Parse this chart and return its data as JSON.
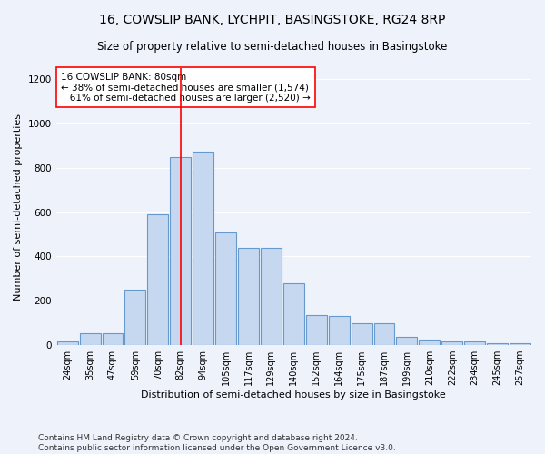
{
  "title": "16, COWSLIP BANK, LYCHPIT, BASINGSTOKE, RG24 8RP",
  "subtitle": "Size of property relative to semi-detached houses in Basingstoke",
  "xlabel": "Distribution of semi-detached houses by size in Basingstoke",
  "ylabel": "Number of semi-detached properties",
  "categories": [
    "24sqm",
    "35sqm",
    "47sqm",
    "59sqm",
    "70sqm",
    "82sqm",
    "94sqm",
    "105sqm",
    "117sqm",
    "129sqm",
    "140sqm",
    "152sqm",
    "164sqm",
    "175sqm",
    "187sqm",
    "199sqm",
    "210sqm",
    "222sqm",
    "234sqm",
    "245sqm",
    "257sqm"
  ],
  "values": [
    15,
    55,
    55,
    250,
    590,
    850,
    875,
    510,
    440,
    440,
    280,
    135,
    130,
    100,
    100,
    37,
    25,
    18,
    18,
    10,
    10
  ],
  "bar_color": "#c5d8f0",
  "bar_edge_color": "#6699cc",
  "annotation_line_x": "82sqm",
  "annotation_line_color": "red",
  "annotation_box_text": "16 COWSLIP BANK: 80sqm\n← 38% of semi-detached houses are smaller (1,574)\n   61% of semi-detached houses are larger (2,520) →",
  "annotation_box_color": "white",
  "annotation_box_edge_color": "red",
  "ylim": [
    0,
    1250
  ],
  "yticks": [
    0,
    200,
    400,
    600,
    800,
    1000,
    1200
  ],
  "footer_line1": "Contains HM Land Registry data © Crown copyright and database right 2024.",
  "footer_line2": "Contains public sector information licensed under the Open Government Licence v3.0.",
  "background_color": "#eef2fb",
  "grid_color": "#ffffff",
  "title_fontsize": 10,
  "subtitle_fontsize": 8.5,
  "xlabel_fontsize": 8,
  "ylabel_fontsize": 8,
  "footer_fontsize": 6.5
}
